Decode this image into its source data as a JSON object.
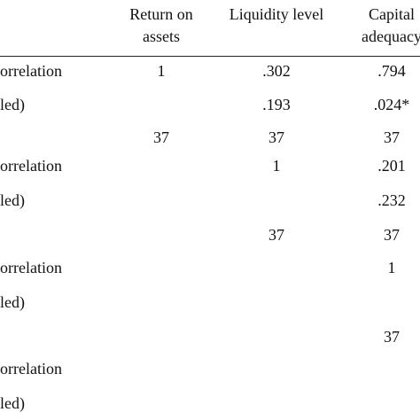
{
  "table": {
    "header": [
      null,
      "Return on assets",
      "Liquidity level",
      "Capital adequacy"
    ],
    "rows": [
      [
        "orrelation",
        "1",
        ".302",
        ".794"
      ],
      [
        "led)",
        null,
        ".193",
        ".024*"
      ],
      [
        null,
        "37",
        "37",
        "37"
      ],
      [
        "orrelation",
        null,
        "1",
        ".201"
      ],
      [
        "led)",
        null,
        null,
        ".232"
      ],
      [
        null,
        null,
        "37",
        "37"
      ],
      [
        "orrelation",
        null,
        null,
        "1"
      ],
      [
        "led)",
        null,
        null,
        null
      ],
      [
        null,
        null,
        null,
        "37"
      ],
      [
        "orrelation",
        null,
        null,
        null
      ],
      [
        "led)",
        null,
        null,
        null
      ]
    ]
  }
}
